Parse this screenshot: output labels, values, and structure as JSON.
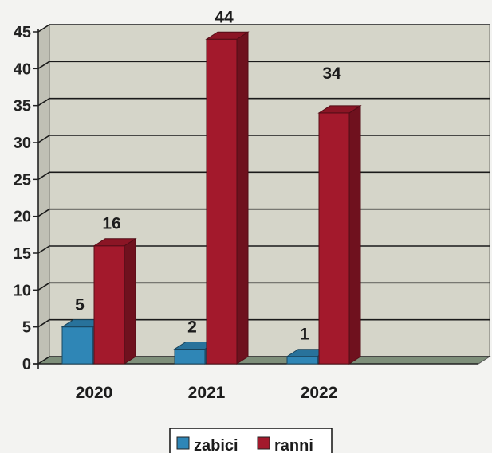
{
  "chart_data": {
    "type": "bar",
    "categories": [
      "2020",
      "2021",
      "2022"
    ],
    "series": [
      {
        "name": "zabici",
        "values": [
          5,
          2,
          1
        ]
      },
      {
        "name": "ranni",
        "values": [
          16,
          44,
          34
        ]
      }
    ],
    "yticks": [
      "0",
      "5",
      "10",
      "15",
      "20",
      "25",
      "30",
      "35",
      "40",
      "45"
    ],
    "ylim": [
      0,
      45
    ],
    "grid": true,
    "legend_position": "bottom",
    "data_labels": {
      "zabici": [
        "5",
        "2",
        "1"
      ],
      "ranni": [
        "16",
        "44",
        "34"
      ]
    },
    "colors": {
      "zabici": "#2f86b6",
      "ranni": "#a3192c",
      "background": "#d5d5c9",
      "floor": "#7e8f7a"
    }
  }
}
